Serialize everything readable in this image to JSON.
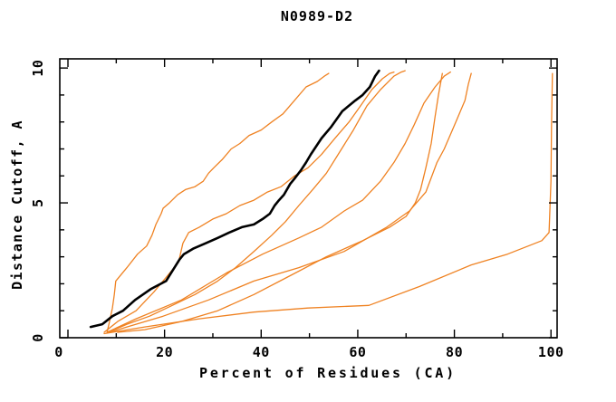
{
  "window": {
    "background": "#ffffff"
  },
  "chart_data": {
    "type": "line",
    "title": "N0989-D2",
    "xlabel": "Percent of Residues (CA)",
    "ylabel": "Distance Cutoff, A",
    "xlim": [
      -1.69,
      101.27
    ],
    "ylim": [
      0,
      10.34
    ],
    "x_ticks_major": [
      0,
      20,
      40,
      60,
      80,
      100
    ],
    "x_ticks_minor": [
      10,
      30,
      50,
      70,
      90
    ],
    "y_ticks_major": [
      0,
      5,
      10
    ],
    "y_ticks_minor": [
      1,
      2,
      3,
      4,
      6,
      7,
      8,
      9
    ],
    "grid": false,
    "legend_position": "none",
    "colors": {
      "model": "#ef8222",
      "reference": "#000000",
      "frame": "#000000"
    },
    "series": [
      {
        "name": "model-1",
        "role": "model",
        "color": "#ef8222",
        "width": 1.3,
        "points": [
          [
            8.1,
            0.2
          ],
          [
            8.6,
            0.6
          ],
          [
            9.2,
            1.1
          ],
          [
            9.6,
            1.6
          ],
          [
            9.9,
            2.1
          ],
          [
            12.2,
            2.6
          ],
          [
            14.4,
            3.1
          ],
          [
            16.3,
            3.4
          ],
          [
            17.4,
            3.8
          ],
          [
            18.2,
            4.2
          ],
          [
            19.3,
            4.6
          ],
          [
            19.7,
            4.8
          ],
          [
            21.0,
            5.0
          ],
          [
            22.7,
            5.3
          ],
          [
            24.4,
            5.5
          ],
          [
            26.3,
            5.6
          ],
          [
            28.0,
            5.8
          ],
          [
            29.1,
            6.1
          ],
          [
            30.2,
            6.3
          ],
          [
            31.9,
            6.6
          ],
          [
            33.8,
            7.0
          ],
          [
            35.6,
            7.2
          ],
          [
            37.5,
            7.5
          ],
          [
            40.0,
            7.7
          ],
          [
            42.2,
            8.0
          ],
          [
            44.5,
            8.3
          ],
          [
            46.9,
            8.8
          ],
          [
            49.3,
            9.3
          ],
          [
            51.6,
            9.5
          ],
          [
            53.1,
            9.7
          ],
          [
            54.0,
            9.8
          ]
        ]
      },
      {
        "name": "model-2",
        "role": "model",
        "color": "#ef8222",
        "width": 1.3,
        "points": [
          [
            7.5,
            0.2
          ],
          [
            10.3,
            0.6
          ],
          [
            14.1,
            1.0
          ],
          [
            17.8,
            1.7
          ],
          [
            20.6,
            2.3
          ],
          [
            22.9,
            2.8
          ],
          [
            23.8,
            3.5
          ],
          [
            25.0,
            3.9
          ],
          [
            27.2,
            4.1
          ],
          [
            30.0,
            4.4
          ],
          [
            32.8,
            4.6
          ],
          [
            35.6,
            4.9
          ],
          [
            38.5,
            5.1
          ],
          [
            41.3,
            5.4
          ],
          [
            44.1,
            5.6
          ],
          [
            46.9,
            6.0
          ],
          [
            49.7,
            6.3
          ],
          [
            52.5,
            6.8
          ],
          [
            55.3,
            7.4
          ],
          [
            58.2,
            8.0
          ],
          [
            60.6,
            8.6
          ],
          [
            62.9,
            9.2
          ],
          [
            65.1,
            9.6
          ],
          [
            66.6,
            9.8
          ],
          [
            67.5,
            9.85
          ]
        ]
      },
      {
        "name": "model-3",
        "role": "model",
        "color": "#ef8222",
        "width": 1.3,
        "points": [
          [
            8.4,
            0.2
          ],
          [
            12.2,
            0.5
          ],
          [
            16.9,
            0.8
          ],
          [
            21.6,
            1.2
          ],
          [
            26.3,
            1.6
          ],
          [
            31.0,
            2.1
          ],
          [
            34.7,
            2.6
          ],
          [
            38.5,
            3.2
          ],
          [
            42.2,
            3.8
          ],
          [
            45.0,
            4.3
          ],
          [
            47.8,
            4.9
          ],
          [
            50.7,
            5.5
          ],
          [
            53.5,
            6.1
          ],
          [
            56.3,
            6.9
          ],
          [
            59.1,
            7.7
          ],
          [
            61.9,
            8.6
          ],
          [
            64.7,
            9.2
          ],
          [
            67.5,
            9.7
          ],
          [
            69.0,
            9.85
          ],
          [
            69.8,
            9.9
          ]
        ]
      },
      {
        "name": "model-4",
        "role": "model",
        "color": "#ef8222",
        "width": 1.3,
        "points": [
          [
            10.3,
            0.2
          ],
          [
            15.9,
            0.3
          ],
          [
            23.5,
            0.6
          ],
          [
            31.0,
            1.0
          ],
          [
            38.5,
            1.6
          ],
          [
            46.0,
            2.3
          ],
          [
            53.5,
            3.0
          ],
          [
            61.0,
            3.6
          ],
          [
            66.6,
            4.1
          ],
          [
            70.0,
            4.5
          ],
          [
            71.9,
            5.0
          ],
          [
            73.0,
            5.5
          ],
          [
            74.1,
            6.3
          ],
          [
            75.2,
            7.2
          ],
          [
            76.0,
            8.2
          ],
          [
            76.7,
            9.0
          ],
          [
            77.5,
            9.8
          ]
        ]
      },
      {
        "name": "model-5",
        "role": "model",
        "color": "#ef8222",
        "width": 1.3,
        "points": [
          [
            8.1,
            0.2
          ],
          [
            14.1,
            0.7
          ],
          [
            23.5,
            1.4
          ],
          [
            32.8,
            2.4
          ],
          [
            40.3,
            3.1
          ],
          [
            47.8,
            3.7
          ],
          [
            52.5,
            4.1
          ],
          [
            57.2,
            4.7
          ],
          [
            61.0,
            5.1
          ],
          [
            64.7,
            5.8
          ],
          [
            67.5,
            6.5
          ],
          [
            69.8,
            7.2
          ],
          [
            71.7,
            7.9
          ],
          [
            73.7,
            8.7
          ],
          [
            76.0,
            9.3
          ],
          [
            77.9,
            9.7
          ],
          [
            79.2,
            9.85
          ]
        ]
      },
      {
        "name": "model-6",
        "role": "model",
        "color": "#ef8222",
        "width": 1.3,
        "points": [
          [
            8.8,
            0.2
          ],
          [
            12.2,
            0.4
          ],
          [
            19.7,
            0.8
          ],
          [
            29.1,
            1.4
          ],
          [
            38.5,
            2.1
          ],
          [
            47.8,
            2.6
          ],
          [
            57.2,
            3.2
          ],
          [
            66.0,
            4.1
          ],
          [
            70.7,
            4.7
          ],
          [
            74.1,
            5.4
          ],
          [
            76.4,
            6.5
          ],
          [
            77.9,
            7.0
          ],
          [
            80.3,
            8.0
          ],
          [
            82.2,
            8.8
          ],
          [
            82.9,
            9.4
          ],
          [
            83.5,
            9.8
          ]
        ]
      },
      {
        "name": "model-7",
        "role": "model",
        "color": "#ef8222",
        "width": 1.3,
        "points": [
          [
            7.5,
            0.15
          ],
          [
            15.9,
            0.4
          ],
          [
            27.2,
            0.7
          ],
          [
            38.5,
            0.95
          ],
          [
            49.7,
            1.1
          ],
          [
            62.3,
            1.2
          ],
          [
            72.8,
            1.9
          ],
          [
            83.5,
            2.7
          ],
          [
            91.0,
            3.1
          ],
          [
            95.3,
            3.4
          ],
          [
            98.1,
            3.6
          ],
          [
            99.6,
            3.9
          ],
          [
            100.0,
            5.8
          ],
          [
            100.1,
            7.8
          ],
          [
            100.3,
            9.8
          ]
        ]
      },
      {
        "name": "reference",
        "role": "reference",
        "color": "#000000",
        "width": 2.6,
        "points": [
          [
            4.7,
            0.4
          ],
          [
            7.1,
            0.5
          ],
          [
            9.2,
            0.8
          ],
          [
            11.4,
            1.0
          ],
          [
            13.9,
            1.4
          ],
          [
            17.1,
            1.8
          ],
          [
            20.3,
            2.1
          ],
          [
            23.1,
            2.9
          ],
          [
            24.0,
            3.1
          ],
          [
            25.9,
            3.3
          ],
          [
            28.5,
            3.5
          ],
          [
            31.0,
            3.7
          ],
          [
            33.4,
            3.9
          ],
          [
            36.0,
            4.1
          ],
          [
            38.5,
            4.2
          ],
          [
            40.3,
            4.4
          ],
          [
            41.8,
            4.6
          ],
          [
            42.8,
            4.9
          ],
          [
            43.7,
            5.1
          ],
          [
            44.7,
            5.3
          ],
          [
            46.0,
            5.7
          ],
          [
            46.9,
            5.9
          ],
          [
            48.2,
            6.2
          ],
          [
            49.3,
            6.5
          ],
          [
            50.3,
            6.8
          ],
          [
            52.5,
            7.4
          ],
          [
            54.4,
            7.8
          ],
          [
            56.8,
            8.4
          ],
          [
            59.5,
            8.8
          ],
          [
            61.0,
            9.0
          ],
          [
            62.5,
            9.3
          ],
          [
            63.6,
            9.7
          ],
          [
            64.4,
            9.9
          ]
        ]
      }
    ]
  }
}
